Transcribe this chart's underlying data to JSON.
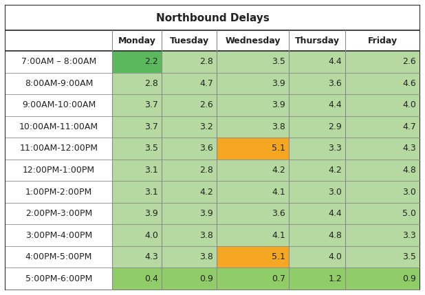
{
  "title": "Northbound Delays",
  "col_headers": [
    "",
    "Monday",
    "Tuesday",
    "Wednesday",
    "Thursday",
    "Friday"
  ],
  "rows": [
    {
      "label": "7:00AM – 8:00AM",
      "values": [
        2.2,
        2.8,
        3.5,
        4.4,
        2.6
      ]
    },
    {
      "label": "8:00AM-9:00AM",
      "values": [
        2.8,
        4.7,
        3.9,
        3.6,
        4.6
      ]
    },
    {
      "label": "9:00AM-10:00AM",
      "values": [
        3.7,
        2.6,
        3.9,
        4.4,
        4.0
      ]
    },
    {
      "label": "10:00AM-11:00AM",
      "values": [
        3.7,
        3.2,
        3.8,
        2.9,
        4.7
      ]
    },
    {
      "label": "11:00AM-12:00PM",
      "values": [
        3.5,
        3.6,
        5.1,
        3.3,
        4.3
      ]
    },
    {
      "label": "12:00PM-1:00PM",
      "values": [
        3.1,
        2.8,
        4.2,
        4.2,
        4.8
      ]
    },
    {
      "label": "1:00PM-2:00PM",
      "values": [
        3.1,
        4.2,
        4.1,
        3.0,
        3.0
      ]
    },
    {
      "label": "2:00PM-3:00PM",
      "values": [
        3.9,
        3.9,
        3.6,
        4.4,
        5.0
      ]
    },
    {
      "label": "3:00PM-4:00PM",
      "values": [
        4.0,
        3.8,
        4.1,
        4.8,
        3.3
      ]
    },
    {
      "label": "4:00PM-5:00PM",
      "values": [
        4.3,
        3.8,
        5.1,
        4.0,
        3.5
      ]
    },
    {
      "label": "5:00PM-6:00PM",
      "values": [
        0.4,
        0.9,
        0.7,
        1.2,
        0.9
      ]
    }
  ],
  "cell_colors": {
    "0_0": "#5cb85c",
    "0_1": "#b5d9a1",
    "0_2": "#b5d9a1",
    "0_3": "#b5d9a1",
    "0_4": "#b5d9a1",
    "1_0": "#b5d9a1",
    "1_1": "#b5d9a1",
    "1_2": "#b5d9a1",
    "1_3": "#b5d9a1",
    "1_4": "#b5d9a1",
    "2_0": "#b5d9a1",
    "2_1": "#b5d9a1",
    "2_2": "#b5d9a1",
    "2_3": "#b5d9a1",
    "2_4": "#b5d9a1",
    "3_0": "#b5d9a1",
    "3_1": "#b5d9a1",
    "3_2": "#b5d9a1",
    "3_3": "#b5d9a1",
    "3_4": "#b5d9a1",
    "4_0": "#b5d9a1",
    "4_1": "#b5d9a1",
    "4_2": "#f5a623",
    "4_3": "#b5d9a1",
    "4_4": "#b5d9a1",
    "5_0": "#b5d9a1",
    "5_1": "#b5d9a1",
    "5_2": "#b5d9a1",
    "5_3": "#b5d9a1",
    "5_4": "#b5d9a1",
    "6_0": "#b5d9a1",
    "6_1": "#b5d9a1",
    "6_2": "#b5d9a1",
    "6_3": "#b5d9a1",
    "6_4": "#b5d9a1",
    "7_0": "#b5d9a1",
    "7_1": "#b5d9a1",
    "7_2": "#b5d9a1",
    "7_3": "#b5d9a1",
    "7_4": "#b5d9a1",
    "8_0": "#b5d9a1",
    "8_1": "#b5d9a1",
    "8_2": "#b5d9a1",
    "8_3": "#b5d9a1",
    "8_4": "#b5d9a1",
    "9_0": "#b5d9a1",
    "9_1": "#b5d9a1",
    "9_2": "#f5a623",
    "9_3": "#b5d9a1",
    "9_4": "#b5d9a1",
    "10_0": "#90cc68",
    "10_1": "#90cc68",
    "10_2": "#90cc68",
    "10_3": "#90cc68",
    "10_4": "#90cc68"
  },
  "border_color": "#222222",
  "grid_color": "#888888",
  "white_bg": "#ffffff",
  "text_color": "#222222",
  "title_fontsize": 11,
  "header_fontsize": 9,
  "cell_fontsize": 9
}
